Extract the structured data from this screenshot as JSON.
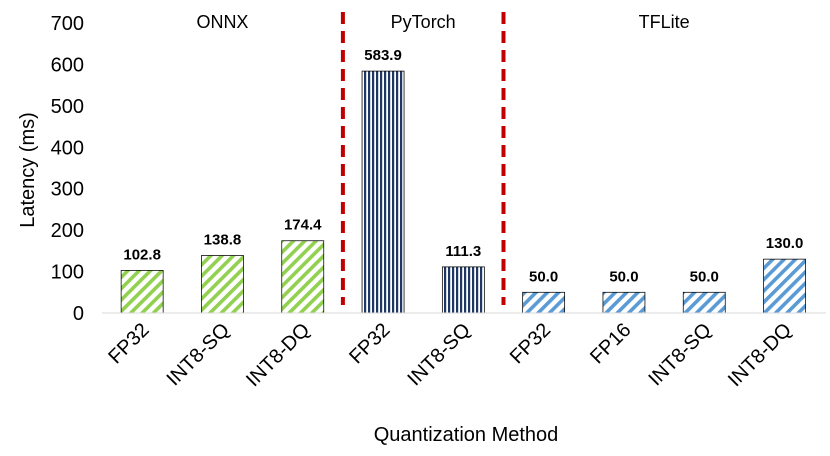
{
  "chart_data": {
    "type": "bar",
    "ylabel": "Latency (ms)",
    "xlabel": "Quantization Method",
    "ylim": [
      0,
      700
    ],
    "yticks": [
      0,
      100,
      200,
      300,
      400,
      500,
      600,
      700
    ],
    "grid": false,
    "groups": [
      {
        "name": "ONNX",
        "color": "#92d050",
        "pattern": "diagonal",
        "bars": [
          {
            "category": "FP32",
            "value": 102.8,
            "label": "102.8"
          },
          {
            "category": "INT8-SQ",
            "value": 138.8,
            "label": "138.8"
          },
          {
            "category": "INT8-DQ",
            "value": 174.4,
            "label": "174.4"
          }
        ]
      },
      {
        "name": "PyTorch",
        "color": "#1f3864",
        "pattern": "vertical",
        "bars": [
          {
            "category": "FP32",
            "value": 583.9,
            "label": "583.9"
          },
          {
            "category": "INT8-SQ",
            "value": 111.3,
            "label": "111.3"
          }
        ]
      },
      {
        "name": "TFLite",
        "color": "#5b9bd5",
        "pattern": "diagonal",
        "bars": [
          {
            "category": "FP32",
            "value": 50.0,
            "label": "50.0"
          },
          {
            "category": "FP16",
            "value": 50.0,
            "label": "50.0"
          },
          {
            "category": "INT8-SQ",
            "value": 50.0,
            "label": "50.0"
          },
          {
            "category": "INT8-DQ",
            "value": 130.0,
            "label": "130.0"
          }
        ]
      }
    ],
    "separator_color": "#c00000"
  }
}
